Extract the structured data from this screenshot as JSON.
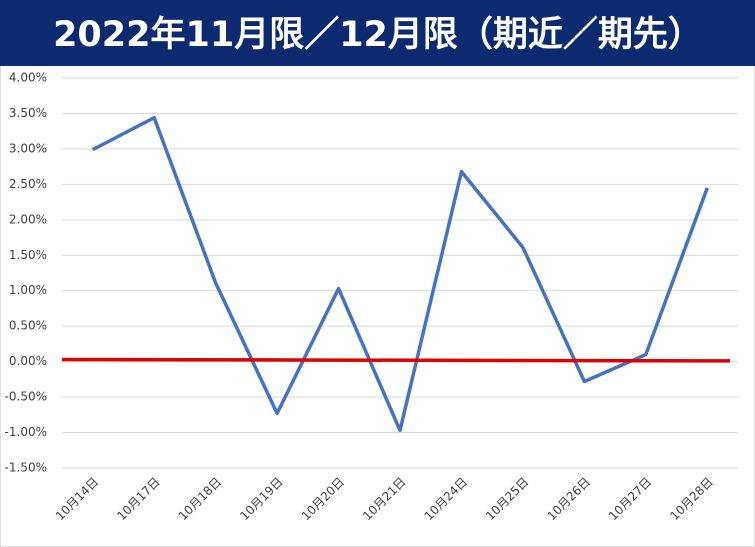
{
  "chart_data": {
    "type": "line",
    "title": "2022年11月限／12月限（期近／期先）",
    "categories": [
      "10月14日",
      "10月17日",
      "10月18日",
      "10月19日",
      "10月20日",
      "10月21日",
      "10月24日",
      "10月25日",
      "10月26日",
      "10月27日",
      "10月28日"
    ],
    "series": [
      {
        "color": "#4472c4",
        "values": [
          2.99,
          3.44,
          1.11,
          -0.73,
          1.03,
          -0.97,
          2.68,
          1.61,
          -0.28,
          0.1,
          2.45
        ]
      }
    ],
    "reference_line": {
      "color": "#e00000",
      "values": [
        0.03,
        0.01
      ]
    },
    "ylim": [
      -1.5,
      4.0
    ],
    "yticks": [
      {
        "value": -1.5,
        "label": "-1.50%"
      },
      {
        "value": -1.0,
        "label": "-1.00%"
      },
      {
        "value": -0.5,
        "label": "-0.50%"
      },
      {
        "value": 0,
        "label": "0.00%"
      },
      {
        "value": 0.5,
        "label": "0.50%"
      },
      {
        "value": 1.0,
        "label": "1.00%"
      },
      {
        "value": 1.5,
        "label": "1.50%"
      },
      {
        "value": 2.0,
        "label": "2.00%"
      },
      {
        "value": 2.5,
        "label": "2.50%"
      },
      {
        "value": 3.0,
        "label": "3.00%"
      },
      {
        "value": 3.5,
        "label": "3.50%"
      },
      {
        "value": 4.0,
        "label": "4.00%"
      }
    ],
    "grid": true
  }
}
